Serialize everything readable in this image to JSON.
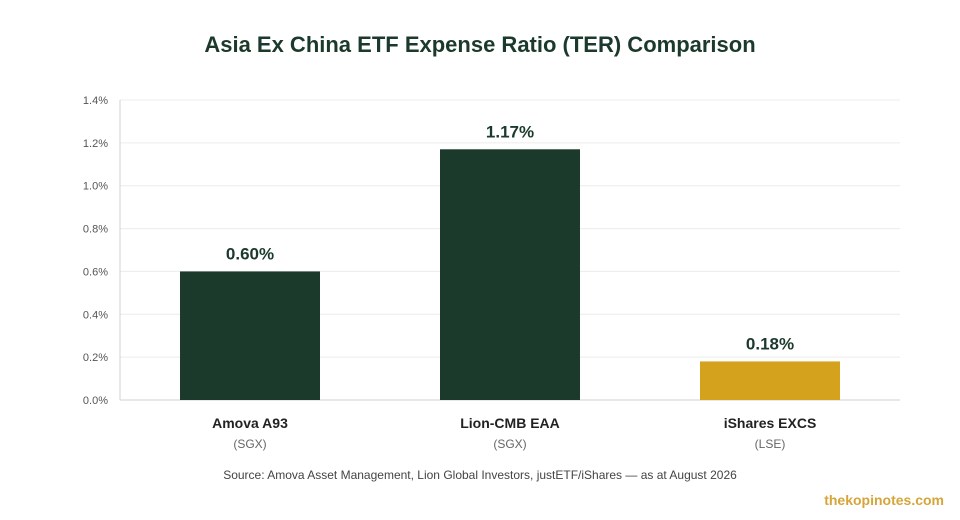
{
  "chart_data": {
    "type": "bar",
    "title": "Asia Ex China ETF Expense Ratio (TER) Comparison",
    "categories": [
      "Amova A93",
      "Lion-CMB EAA",
      "iShares EXCS"
    ],
    "exchanges": [
      "(SGX)",
      "(SGX)",
      "(LSE)"
    ],
    "values": [
      0.6,
      1.17,
      0.18
    ],
    "value_labels": [
      "0.60%",
      "1.17%",
      "0.18%"
    ],
    "bar_colors": [
      "#1b3a2b",
      "#1b3a2b",
      "#d4a21c"
    ],
    "ylim": [
      0,
      1.4
    ],
    "yticks": [
      0,
      0.2,
      0.4,
      0.6,
      0.8,
      1.0,
      1.2,
      1.4
    ],
    "ytick_labels": [
      "0.0%",
      "0.2%",
      "0.4%",
      "0.6%",
      "0.8%",
      "1.0%",
      "1.2%",
      "1.4%"
    ],
    "grid": true,
    "xlabel": "",
    "ylabel": ""
  },
  "source": "Source: Amova Asset Management, Lion Global Investors, justETF/iShares — as at August 2026",
  "watermark": "thekopinotes.com"
}
